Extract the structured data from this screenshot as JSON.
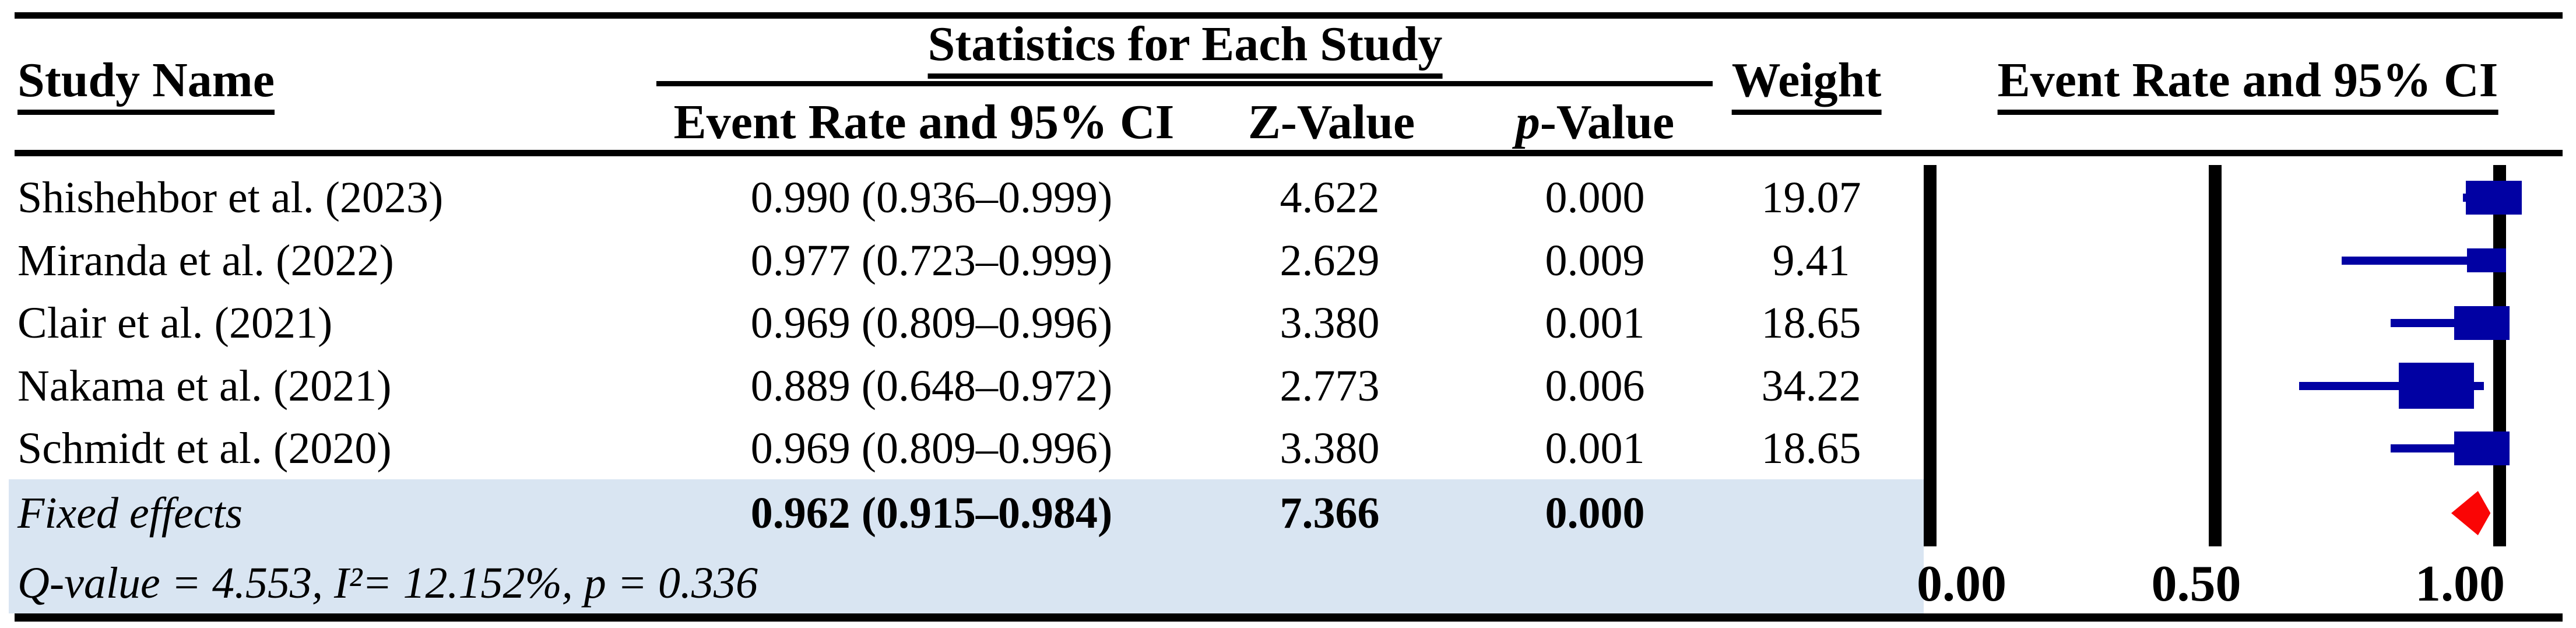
{
  "table": {
    "col_study": "Study Name",
    "group_header": "Statistics for Each Study",
    "col_event_rate": "Event Rate and 95% CI",
    "col_z": "Z-Value",
    "col_p_italic": "p",
    "col_p_rest": "-Value",
    "col_weight": "Weight",
    "plot_header": "Event Rate and 95% CI",
    "rows": [
      {
        "study": "Shishehbor et al. (2023)",
        "event_rate": "0.990 (0.936–0.999)",
        "z": "4.622",
        "p": "0.000",
        "weight": "19.07"
      },
      {
        "study": "Miranda et al. (2022)",
        "event_rate": "0.977 (0.723–0.999)",
        "z": "2.629",
        "p": "0.009",
        "weight": "9.41"
      },
      {
        "study": "Clair et al. (2021)",
        "event_rate": "0.969 (0.809–0.996)",
        "z": "3.380",
        "p": "0.001",
        "weight": "18.65"
      },
      {
        "study": "Nakama et al. (2021)",
        "event_rate": "0.889 (0.648–0.972)",
        "z": "2.773",
        "p": "0.006",
        "weight": "34.22"
      },
      {
        "study": "Schmidt et al. (2020)",
        "event_rate": "0.969 (0.809–0.996)",
        "z": "3.380",
        "p": "0.001",
        "weight": "18.65"
      }
    ],
    "summary_row": {
      "study": "Fixed effects",
      "event_rate": "0.962 (0.915–0.984)",
      "z": "7.366",
      "p": "0.000"
    },
    "heterogeneity": "Q-value = 4.553, I²= 12.152%, p = 0.336"
  },
  "chart_data": {
    "type": "forest",
    "title": "Event Rate and 95% CI",
    "x_axis": {
      "ticks": [
        {
          "label": "0.00",
          "value": 0
        },
        {
          "label": "0.50",
          "value": 0.5
        },
        {
          "label": "1.00",
          "value": 1
        }
      ],
      "range": [
        0,
        1.13
      ],
      "grid": false
    },
    "studies": [
      {
        "name": "Shishehbor et al. (2023)",
        "event_rate": 0.99,
        "ci_low": 0.936,
        "ci_high": 0.999,
        "weight": 19.07
      },
      {
        "name": "Miranda et al. (2022)",
        "event_rate": 0.977,
        "ci_low": 0.723,
        "ci_high": 0.999,
        "weight": 9.41
      },
      {
        "name": "Clair et al. (2021)",
        "event_rate": 0.969,
        "ci_low": 0.809,
        "ci_high": 0.996,
        "weight": 18.65
      },
      {
        "name": "Nakama et al. (2021)",
        "event_rate": 0.889,
        "ci_low": 0.648,
        "ci_high": 0.972,
        "weight": 34.22
      },
      {
        "name": "Schmidt et al. (2020)",
        "event_rate": 0.969,
        "ci_low": 0.809,
        "ci_high": 0.996,
        "weight": 18.65
      }
    ],
    "summary": {
      "name": "Fixed effects",
      "model": "fixed",
      "event_rate": 0.962,
      "ci_low": 0.915,
      "ci_high": 0.984
    },
    "heterogeneity": {
      "q_value": 4.553,
      "i_squared_pct": 12.152,
      "p": 0.336
    },
    "colors": {
      "marker": "#0101A3",
      "summary_diamond": "#FA0505",
      "row_highlight": "#D9E5F2",
      "axis": "#000000"
    }
  }
}
